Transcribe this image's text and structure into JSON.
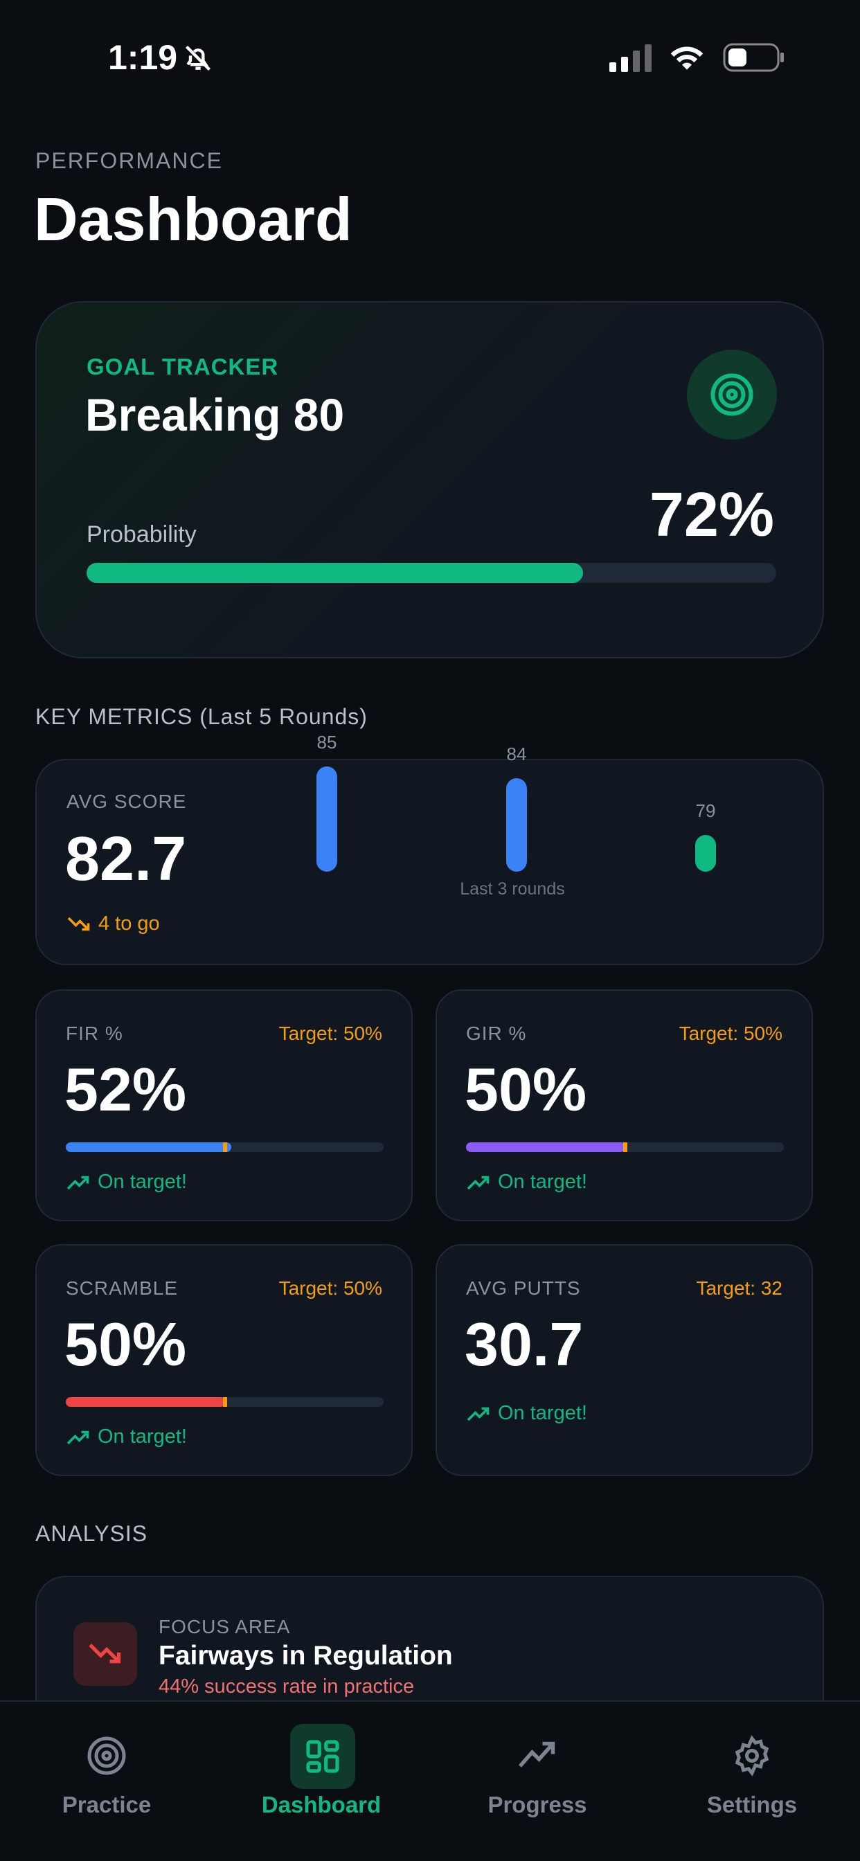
{
  "status": {
    "time": "1:19"
  },
  "header": {
    "eyebrow": "PERFORMANCE",
    "title": "Dashboard"
  },
  "goal": {
    "eyebrow": "GOAL TRACKER",
    "title": "Breaking 80",
    "prob_label": "Probability",
    "prob_text": "72%",
    "prob_value": 72
  },
  "metrics": {
    "section": "KEY METRICS (Last 5 Rounds)",
    "avg": {
      "label": "AVG SCORE",
      "value": "82.7",
      "delta": "4 to go",
      "bars": [
        {
          "label": "85",
          "value": 85,
          "color": "#3b82f6"
        },
        {
          "label": "84",
          "value": 84,
          "color": "#3b82f6"
        },
        {
          "label": "79",
          "value": 79,
          "color": "#10b981"
        }
      ],
      "bars_caption": "Last 3 rounds"
    },
    "cards": [
      {
        "label": "FIR %",
        "target": "Target: 50%",
        "value": "52%",
        "fill": 52,
        "marker": 50,
        "color": "#3b82f6",
        "status": "On target!"
      },
      {
        "label": "GIR %",
        "target": "Target: 50%",
        "value": "50%",
        "fill": 50,
        "marker": 50,
        "color": "#8b5cf6",
        "status": "On target!"
      },
      {
        "label": "SCRAMBLE",
        "target": "Target: 50%",
        "value": "50%",
        "fill": 50,
        "marker": 50,
        "color": "#ef4444",
        "status": "On target!"
      },
      {
        "label": "AVG PUTTS",
        "target": "Target: 32",
        "value": "30.7",
        "status": "On target!"
      }
    ]
  },
  "analysis": {
    "section": "ANALYSIS",
    "focus": {
      "eyebrow": "FOCUS AREA",
      "title": "Fairways in Regulation",
      "subtitle": "44% success rate in practice"
    }
  },
  "tabs": [
    {
      "label": "Practice"
    },
    {
      "label": "Dashboard",
      "active": true
    },
    {
      "label": "Progress"
    },
    {
      "label": "Settings"
    }
  ]
}
